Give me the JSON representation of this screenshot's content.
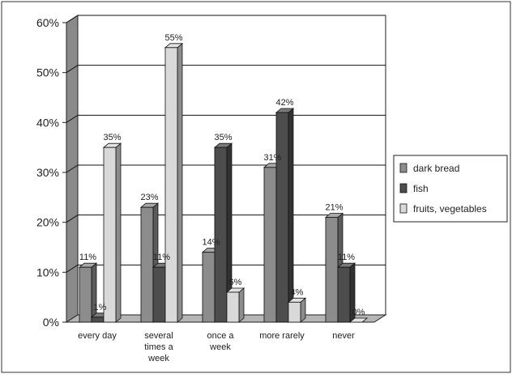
{
  "chart_data": {
    "type": "bar",
    "categories": [
      [
        "every day"
      ],
      [
        "several",
        "times a",
        "week"
      ],
      [
        "once a",
        "week"
      ],
      [
        "more rarely"
      ],
      [
        "never"
      ]
    ],
    "series": [
      {
        "name": "dark bread",
        "values": [
          11,
          23,
          14,
          31,
          21
        ],
        "color": "#8c8c8c"
      },
      {
        "name": "fish",
        "values": [
          1,
          11,
          35,
          42,
          11
        ],
        "color": "#4d4d4d"
      },
      {
        "name": "fruits, vegetables",
        "values": [
          35,
          55,
          6,
          4,
          0
        ],
        "color": "#d9d9d9"
      }
    ],
    "data_labels": [
      [
        "11%",
        "23%",
        "14%",
        "31%",
        "21%"
      ],
      [
        "1%",
        "11%",
        "35%",
        "42%",
        "11%"
      ],
      [
        "35%",
        "55%",
        "6%",
        "4%",
        "0%"
      ]
    ],
    "ylim": [
      0,
      60
    ],
    "yticks": [
      0,
      10,
      20,
      30,
      40,
      50,
      60
    ],
    "ytick_labels": [
      "0%",
      "10%",
      "20%",
      "30%",
      "40%",
      "50%",
      "60%"
    ],
    "grid": true,
    "style": "3d",
    "legend_position": "right",
    "title": "",
    "xlabel": "",
    "ylabel": ""
  }
}
